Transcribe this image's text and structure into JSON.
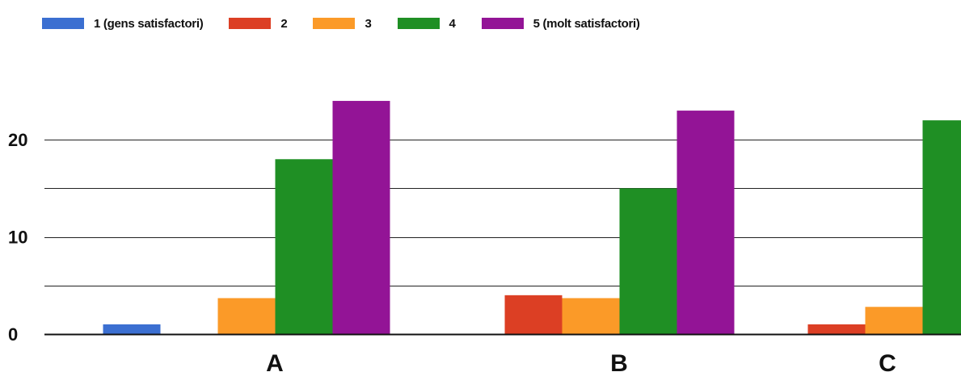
{
  "chart_data": {
    "type": "bar",
    "title": "",
    "xlabel": "",
    "ylabel": "",
    "categories": [
      "A",
      "B",
      "C"
    ],
    "series": [
      {
        "name": "1 (gens satisfactori)",
        "color": "#3b6fd1",
        "values": [
          1,
          0,
          0
        ]
      },
      {
        "name": "2",
        "color": "#dc3f24",
        "values": [
          0,
          4,
          1
        ]
      },
      {
        "name": "3",
        "color": "#fb9a28",
        "values": [
          3.7,
          3.7,
          2.8
        ]
      },
      {
        "name": "4",
        "color": "#1f8f24",
        "values": [
          18,
          15,
          22
        ]
      },
      {
        "name": "5 (molt satisfactori)",
        "color": "#931496",
        "values": [
          24,
          23,
          0
        ]
      }
    ],
    "ylim": [
      0,
      25
    ],
    "yticks": [
      "0",
      "10",
      "20"
    ],
    "grid": true,
    "legend_position": "top-left"
  }
}
